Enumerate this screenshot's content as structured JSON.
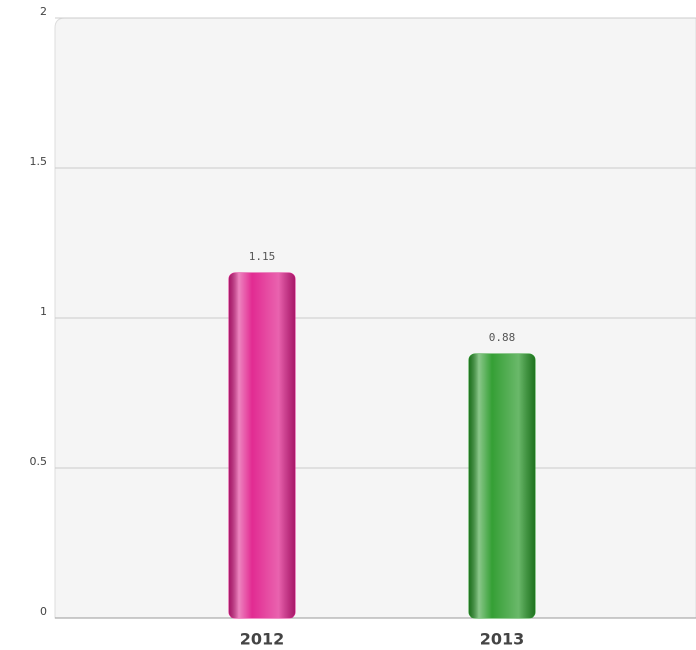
{
  "chart_data": {
    "type": "bar",
    "categories": [
      "2012",
      "2013"
    ],
    "values": [
      1.15,
      0.88
    ],
    "colors": [
      "#e0208c",
      "#2a9a2a"
    ],
    "ylim": [
      0,
      2
    ],
    "yticks": [
      0,
      0.5,
      1,
      1.5,
      2
    ],
    "grid": true
  }
}
